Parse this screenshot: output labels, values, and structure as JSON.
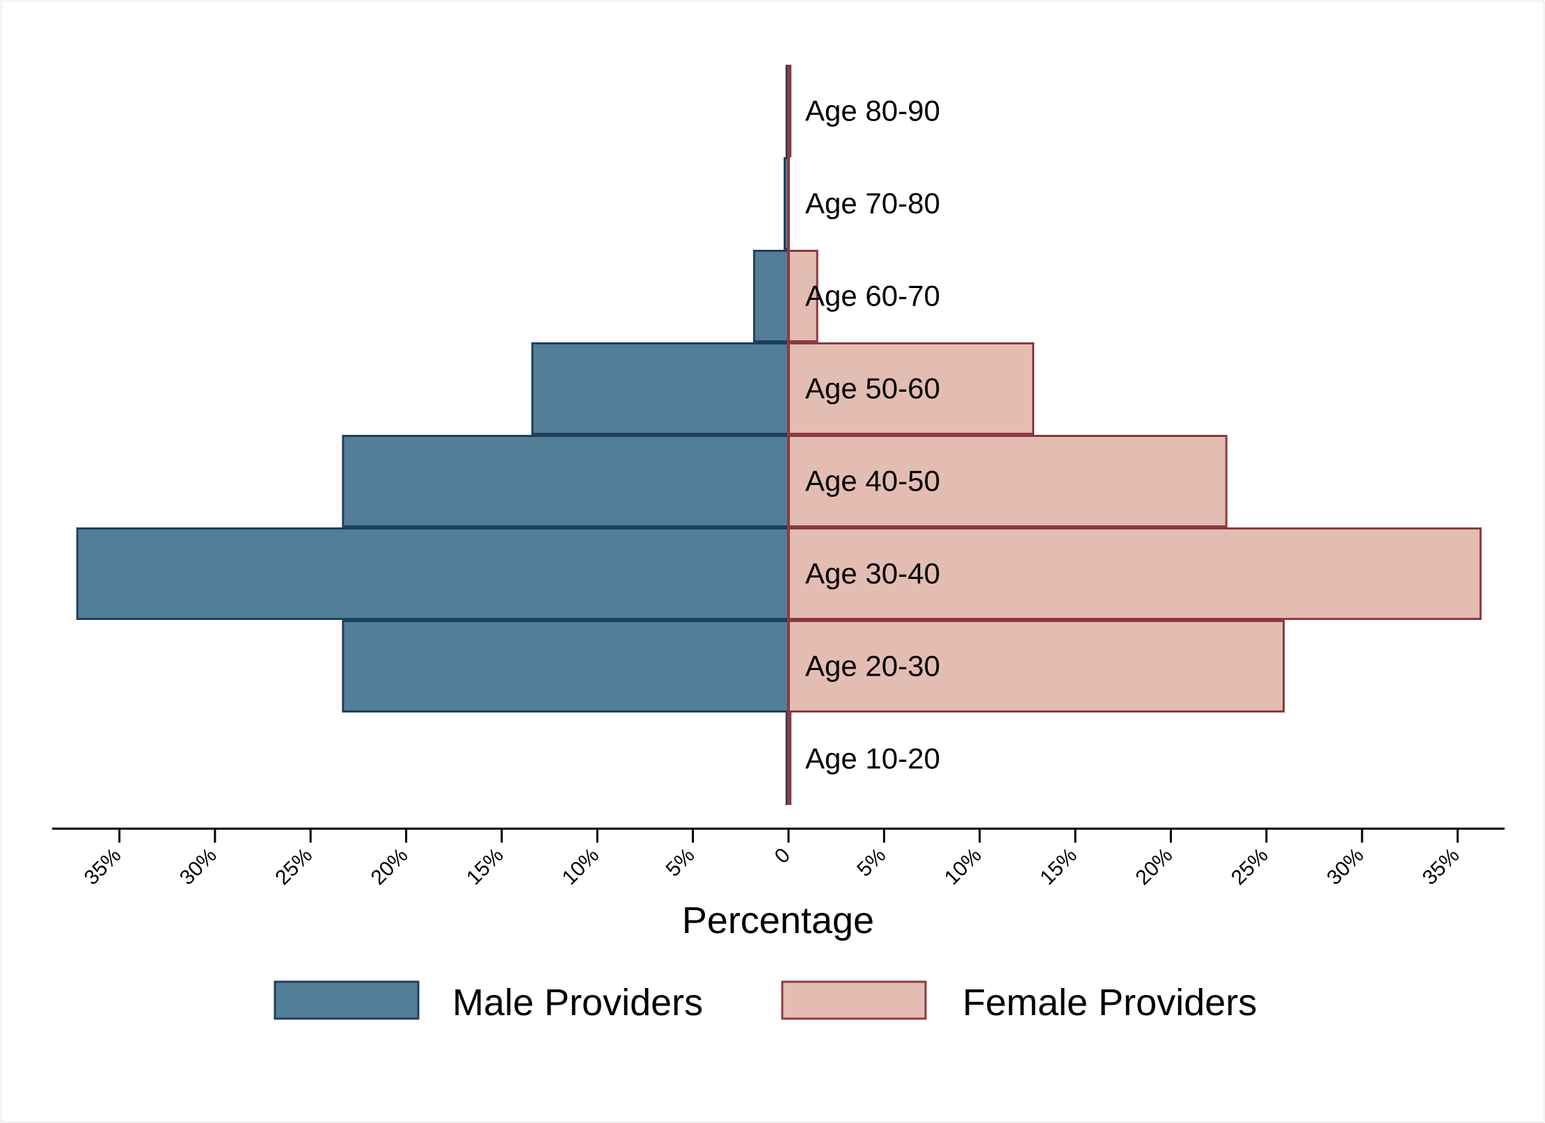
{
  "chart_data": {
    "type": "bar",
    "orientation": "horizontal",
    "style": "population-pyramid",
    "xlabel": "Percentage",
    "categories": [
      "Age 80-90",
      "Age 70-80",
      "Age 60-70",
      "Age 50-60",
      "Age 40-50",
      "Age 30-40",
      "Age 20-30",
      "Age 10-20"
    ],
    "series": [
      {
        "name": "Male Providers",
        "side": "left",
        "color": "#527f97",
        "edge": "#1f3f5f",
        "values": [
          0.1,
          0.2,
          1.8,
          13.4,
          23.3,
          37.2,
          23.3,
          0.1
        ]
      },
      {
        "name": "Female Providers",
        "side": "right",
        "color": "#e3bdb2",
        "edge": "#8b3a42",
        "values": [
          0.1,
          0.0,
          1.5,
          12.8,
          22.9,
          36.2,
          25.9,
          0.1
        ]
      }
    ],
    "xlim": [
      -38,
      37.5
    ],
    "xticks": [
      -35,
      -30,
      -25,
      -20,
      -15,
      -10,
      -5,
      0,
      5,
      10,
      15,
      20,
      25,
      30,
      35
    ],
    "xtick_labels": [
      "35%",
      "30%",
      "25%",
      "20%",
      "15%",
      "10%",
      "5%",
      "0",
      "5%",
      "10%",
      "15%",
      "20%",
      "25%",
      "30%",
      "35%"
    ],
    "legend_position": "bottom",
    "grid": false
  }
}
